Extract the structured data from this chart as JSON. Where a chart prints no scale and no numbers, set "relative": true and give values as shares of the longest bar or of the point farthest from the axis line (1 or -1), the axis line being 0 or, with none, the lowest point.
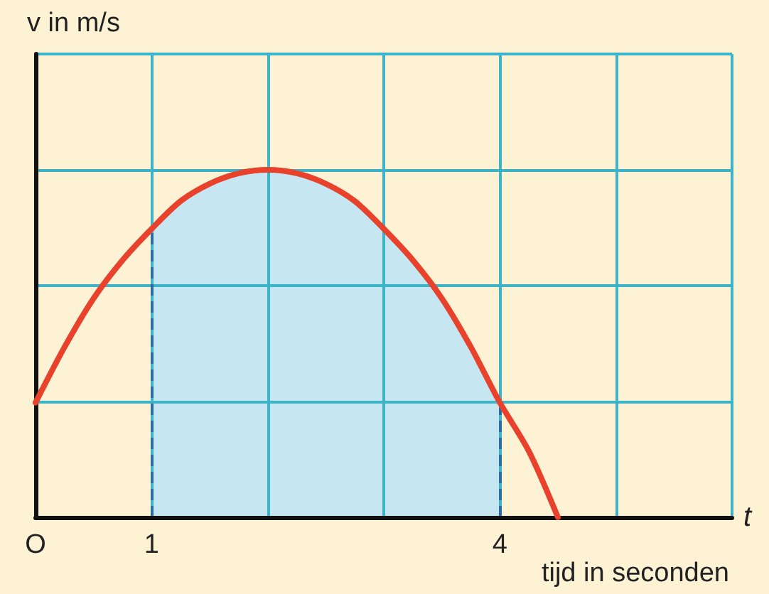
{
  "chart_data": {
    "type": "line",
    "ylabel": "v in m/s",
    "xlabel": "t",
    "annotations": [
      "tijd in seconden"
    ],
    "relative": true,
    "xlim": [
      0,
      6
    ],
    "xticks": [
      {
        "value": 0,
        "label": "O"
      },
      1,
      {
        "value": 2,
        "label": null
      },
      {
        "value": 3,
        "label": null
      },
      4,
      {
        "value": 5,
        "label": null
      },
      {
        "value": 6,
        "label": null
      }
    ],
    "grid": true,
    "series": [
      {
        "type": "area",
        "color": "#c6e7f2",
        "x": [
          1,
          1.25,
          1.5,
          1.75,
          2,
          2.25,
          2.5,
          2.75,
          3,
          3.25,
          3.5,
          3.75,
          4
        ],
        "values": [
          0.83,
          0.91,
          0.96,
          0.99,
          1,
          0.99,
          0.96,
          0.91,
          0.83,
          0.74,
          0.63,
          0.49,
          0.33
        ]
      },
      {
        "type": "line",
        "color": "#e8412c",
        "x": [
          0,
          0.25,
          0.5,
          0.75,
          1,
          1.25,
          1.5,
          1.75,
          2,
          2.25,
          2.5,
          2.75,
          3,
          3.25,
          3.5,
          3.75,
          4,
          4.25,
          4.5
        ],
        "values": [
          0.33,
          0.49,
          0.63,
          0.74,
          0.83,
          0.91,
          0.96,
          0.99,
          1,
          0.99,
          0.96,
          0.91,
          0.83,
          0.74,
          0.63,
          0.49,
          0.33,
          0.19,
          0
        ]
      }
    ],
    "ref_lines": [
      {
        "axis": "x",
        "value": 1,
        "color": "#2b6ca3",
        "line_style": "dashed"
      },
      {
        "axis": "x",
        "value": 4,
        "color": "#2b6ca3",
        "line_style": "dashed"
      }
    ]
  }
}
